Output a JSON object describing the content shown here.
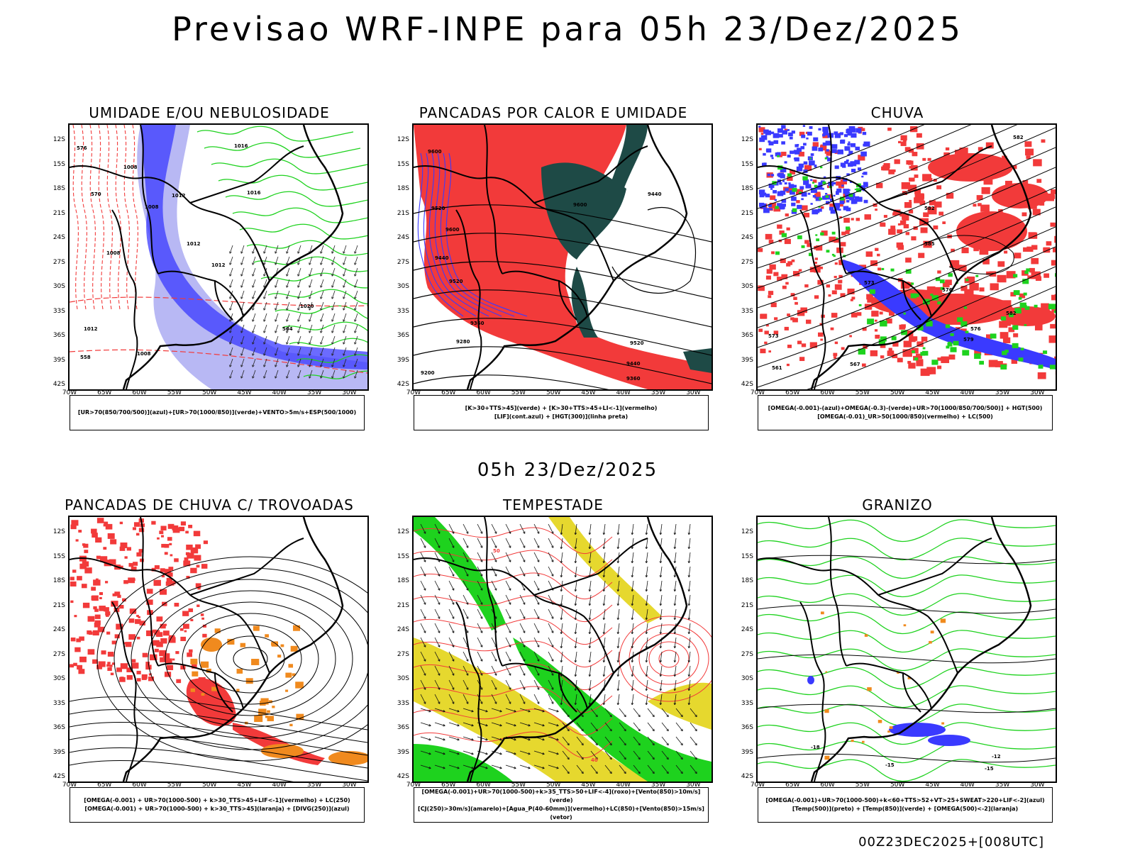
{
  "header": {
    "title": "Previsao WRF-INPE  para 05h 23/Dez/2025"
  },
  "mid_title": "05h 23/Dez/2025",
  "footer": "00Z23DEC2025+[008UTC]",
  "axes": {
    "lat_labels": [
      "12S",
      "15S",
      "18S",
      "21S",
      "24S",
      "27S",
      "30S",
      "33S",
      "36S",
      "39S",
      "42S"
    ],
    "lon_labels": [
      "70W",
      "65W",
      "60W",
      "55W",
      "50W",
      "45W",
      "40W",
      "35W",
      "30W"
    ]
  },
  "colors": {
    "red": "#f23a3a",
    "blue": "#3a3aff",
    "green": "#1ed21e",
    "yellow": "#e6d82e",
    "orange": "#f08a1e",
    "darkteal": "#1e4a46",
    "lightblue": "#b8b8f4"
  },
  "panels": [
    {
      "title": "UMIDADE E/OU NEBULOSIDADE",
      "legend": [
        "[UR>70(850/700/500)](azul)+[UR>70(1000/850)](verde)+VENTO>5m/s+ESP(500/1000)"
      ],
      "contour_labels": [
        "1008",
        "1016",
        "1012",
        "1016",
        "1008",
        "1012",
        "1008",
        "1012",
        "1020",
        "1012",
        "1008",
        "576",
        "570",
        "564",
        "558"
      ]
    },
    {
      "title": "PANCADAS POR CALOR E UMIDADE",
      "legend": [
        "[K>30+TTS>45](verde) + [K>30+TTS>45+LI<-1](vermelho)",
        "[LIF](cont.azul) + [HGT(300)](linha preta)"
      ],
      "contour_labels": [
        "9600",
        "9520",
        "9600",
        "9440",
        "9520",
        "9600",
        "9440",
        "9360",
        "9280",
        "9200",
        "9520",
        "9440",
        "9360"
      ]
    },
    {
      "title": "CHUVA",
      "legend": [
        "[OMEGA(-0.001)-(azul)+OMEGA(-0.3)-(verde)+UR>70(1000/850/700/500)] + HGT(500)",
        "[OMEGA(-0.01)_UR>50(1000/850)(vermelho) + LC(500)"
      ],
      "contour_labels": [
        "582",
        "582",
        "585",
        "576",
        "573",
        "582",
        "579",
        "576",
        "573",
        "567",
        "561"
      ]
    },
    {
      "title": "PANCADAS DE CHUVA C/ TROVOADAS",
      "legend": [
        "[OMEGA(-0.001) + UR>70(1000-500) + k>30_TTS>45+LIF<-1](vermelho) + LC(250)",
        "[OMEGA(-0.001) + UR>70(1000-500) + k>30_TTS>45](laranja) + [DIVG(250)](azul)"
      ],
      "contour_labels": []
    },
    {
      "title": "TEMPESTADE",
      "legend": [
        "[OMEGA(-0.001)+UR>70(1000-500)+k>35_TTS>50+LIF<-4](roxo)+[Vento(850)>10m/s](verde)",
        "[CJ(250)>30m/s](amarelo)+[Agua_P(40-60mm)](vermelho)+LC(850)+[Vento(850)>15m/s](vetor)"
      ],
      "contour_labels": [
        "50",
        "40"
      ]
    },
    {
      "title": "GRANIZO",
      "legend": [
        "[OMEGA(-0.001)+UR>70(1000-500)+k<60+TTS>52+VT>25+SWEAT>220+LIF<-2](azul)",
        "[Temp(500)](preto) + [Temp(850)](verde) + [OMEGA(500)<-2](laranja)"
      ],
      "contour_labels": [
        "-18",
        "-15",
        "-12",
        "-15"
      ]
    }
  ]
}
